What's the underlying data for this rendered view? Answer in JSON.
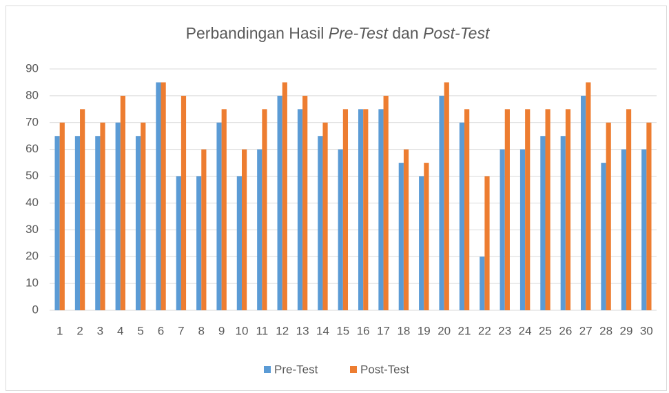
{
  "chart_data": {
    "type": "bar",
    "title": [
      {
        "text": "Perbandingan Hasil "
      },
      {
        "text": "Pre-Test",
        "italic": true
      },
      {
        "text": " dan "
      },
      {
        "text": "Post-Test",
        "italic": true
      }
    ],
    "categories": [
      "1",
      "2",
      "3",
      "4",
      "5",
      "6",
      "7",
      "8",
      "9",
      "10",
      "11",
      "12",
      "13",
      "14",
      "15",
      "16",
      "17",
      "18",
      "19",
      "20",
      "21",
      "22",
      "23",
      "24",
      "25",
      "26",
      "27",
      "28",
      "29",
      "30"
    ],
    "series": [
      {
        "name": "Pre-Test",
        "color": "#5b9bd5",
        "values": [
          65,
          65,
          65,
          70,
          65,
          85,
          50,
          50,
          70,
          50,
          60,
          80,
          75,
          65,
          60,
          75,
          75,
          55,
          50,
          80,
          70,
          20,
          60,
          60,
          65,
          65,
          80,
          55,
          60,
          60
        ]
      },
      {
        "name": "Post-Test",
        "color": "#ed7d31",
        "values": [
          70,
          75,
          70,
          80,
          70,
          85,
          80,
          60,
          75,
          60,
          75,
          85,
          80,
          70,
          75,
          75,
          80,
          60,
          55,
          85,
          75,
          50,
          75,
          75,
          75,
          75,
          85,
          70,
          75,
          70
        ]
      }
    ],
    "ylim": [
      0,
      90
    ],
    "yticks": [
      0,
      10,
      20,
      30,
      40,
      50,
      60,
      70,
      80,
      90
    ],
    "grid": true,
    "legend": "bottom"
  }
}
